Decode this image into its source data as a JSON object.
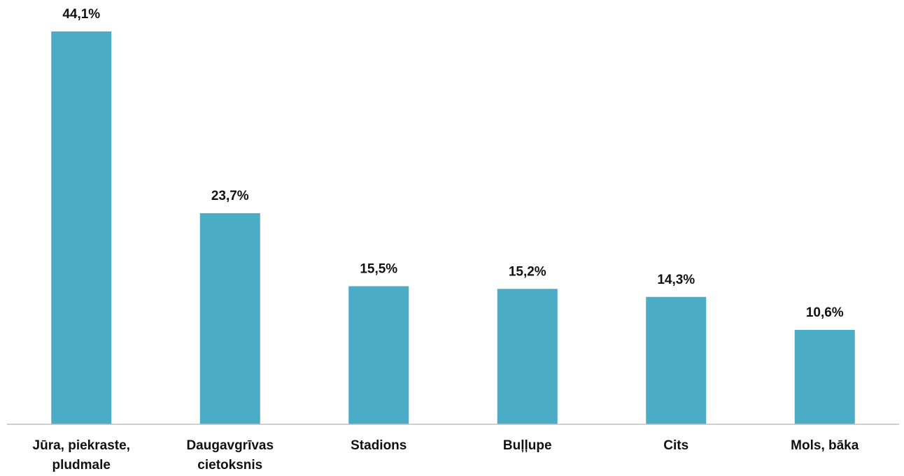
{
  "chart_data": {
    "type": "bar",
    "categories": [
      [
        "Jūra, piekraste,",
        "pludmale"
      ],
      [
        "Daugavgrīvas",
        "cietoksnis"
      ],
      [
        "Stadions"
      ],
      [
        "Buļļupe"
      ],
      [
        "Cits"
      ],
      [
        "Mols, bāka"
      ]
    ],
    "values": [
      44.1,
      23.7,
      15.5,
      15.2,
      14.3,
      10.6
    ],
    "value_labels": [
      "44,1%",
      "23,7%",
      "15,5%",
      "15,2%",
      "14,3%",
      "10,6%"
    ],
    "color": "#4bacc6"
  }
}
